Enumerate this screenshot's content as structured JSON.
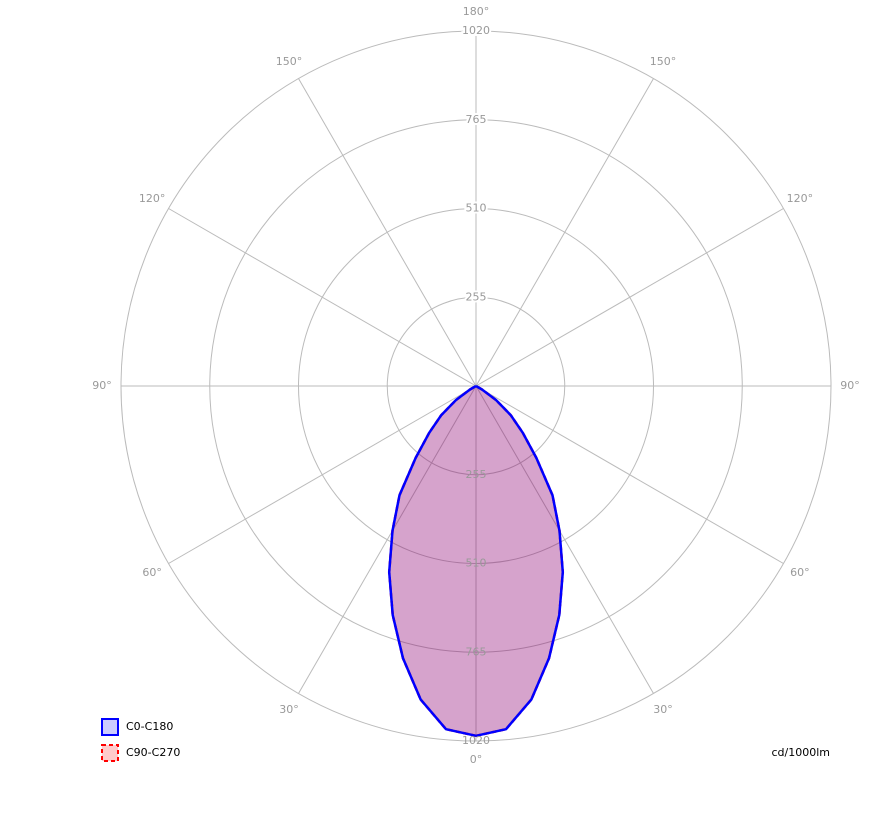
{
  "chart_data": {
    "type": "polar",
    "unit_label": "cd/1000lm",
    "x": [
      0,
      5,
      10,
      15,
      20,
      25,
      30,
      35,
      40,
      45,
      50,
      55,
      60,
      65,
      70,
      75,
      80,
      85,
      90,
      95,
      100,
      105,
      110,
      115,
      120,
      125,
      130,
      135,
      140,
      145,
      150,
      155,
      160,
      165,
      170,
      175,
      180
    ],
    "series": [
      {
        "name": "C0-C180",
        "color": "#0000ff",
        "dashed": false,
        "values": [
          1005,
          990,
          915,
          810,
          700,
          590,
          480,
          383,
          270,
          190,
          130,
          70,
          20,
          0,
          0,
          0,
          0,
          0,
          0,
          0,
          0,
          0,
          0,
          0,
          0,
          0,
          0,
          0,
          0,
          0,
          0,
          0,
          0,
          0,
          0,
          0,
          0
        ]
      },
      {
        "name": "C90-C270",
        "color": "#ff0000",
        "dashed": true,
        "values": [
          1005,
          990,
          915,
          810,
          700,
          590,
          480,
          383,
          270,
          190,
          130,
          70,
          20,
          0,
          0,
          0,
          0,
          0,
          0,
          0,
          0,
          0,
          0,
          0,
          0,
          0,
          0,
          0,
          0,
          0,
          0,
          0,
          0,
          0,
          0,
          0,
          0
        ]
      }
    ],
    "rlim": [
      0,
      1020
    ],
    "rticks": [
      255,
      510,
      765,
      1020
    ],
    "angleticks": [
      {
        "value": 0,
        "label": "0°"
      },
      {
        "value": 30,
        "label": "30°"
      },
      {
        "value": 60,
        "label": "60°"
      },
      {
        "value": 90,
        "label": "90°"
      },
      {
        "value": 120,
        "label": "120°"
      },
      {
        "value": 150,
        "label": "150°"
      },
      {
        "value": 180,
        "label": "180°"
      }
    ],
    "grid": true
  }
}
